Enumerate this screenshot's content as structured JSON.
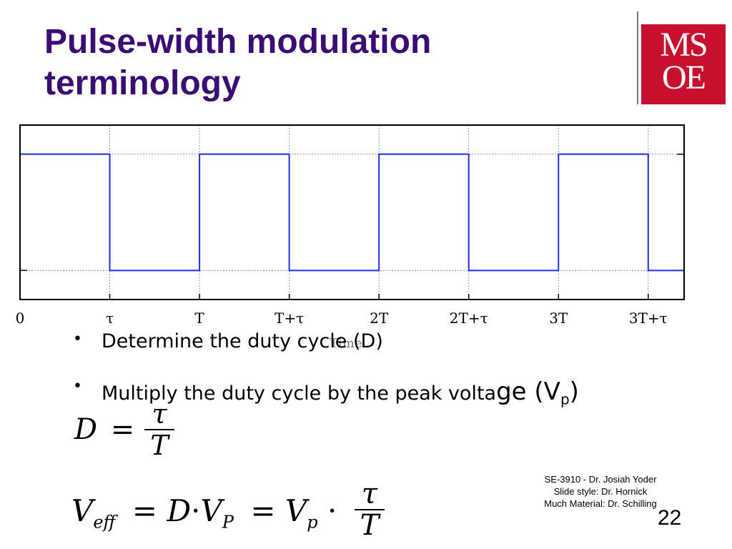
{
  "slide": {
    "title_line1": "Pulse-width modulation",
    "title_line2": "terminology",
    "logo_line1": "MS",
    "logo_line2": "OE",
    "bullets": [
      {
        "text": "Determine the duty cycle (D)"
      },
      {
        "text_main": "Multiply the duty cycle by the peak volta",
        "text_big": "ge (V",
        "subscript": "p",
        "closing": ")"
      }
    ],
    "footer_lines": [
      "SE-3910  - Dr. Josiah Yoder",
      "Slide style: Dr. Hornick",
      "Much Material: Dr. Schilling"
    ],
    "page_number": "22"
  },
  "equations": {
    "duty": {
      "lhs": "D",
      "eq": "=",
      "num": "τ",
      "den": "T"
    },
    "veff": {
      "v": "V",
      "sub_eff": "eff",
      "eq1": "=",
      "d": "D",
      "dot": "·",
      "vp": "V",
      "sub_P": "P",
      "eq2": "=",
      "vp2": "V",
      "sub_p": "p",
      "dot2": "·",
      "num": "τ",
      "den": "T"
    }
  },
  "chart_data": {
    "type": "line",
    "xlabel": "Time",
    "x_ticks": [
      {
        "value": 0,
        "label": "0"
      },
      {
        "value": 0.5,
        "label": "τ"
      },
      {
        "value": 1,
        "label": "T"
      },
      {
        "value": 1.5,
        "label": "T+τ"
      },
      {
        "value": 2,
        "label": "2T"
      },
      {
        "value": 2.5,
        "label": "2T+τ"
      },
      {
        "value": 3,
        "label": "3T"
      },
      {
        "value": 3.5,
        "label": "3T+τ"
      }
    ],
    "xlim": [
      0,
      3.7
    ],
    "ylim": [
      -0.25,
      1.25
    ],
    "grid": true,
    "series": [
      {
        "color": "#1f2fe6",
        "points": [
          [
            0,
            1
          ],
          [
            0.5,
            1
          ],
          [
            0.5,
            0
          ],
          [
            1,
            0
          ],
          [
            1,
            1
          ],
          [
            1.5,
            1
          ],
          [
            1.5,
            0
          ],
          [
            2,
            0
          ],
          [
            2,
            1
          ],
          [
            2.5,
            1
          ],
          [
            2.5,
            0
          ],
          [
            3,
            0
          ],
          [
            3,
            1
          ],
          [
            3.5,
            1
          ],
          [
            3.5,
            0
          ],
          [
            3.7,
            0
          ]
        ]
      }
    ]
  }
}
